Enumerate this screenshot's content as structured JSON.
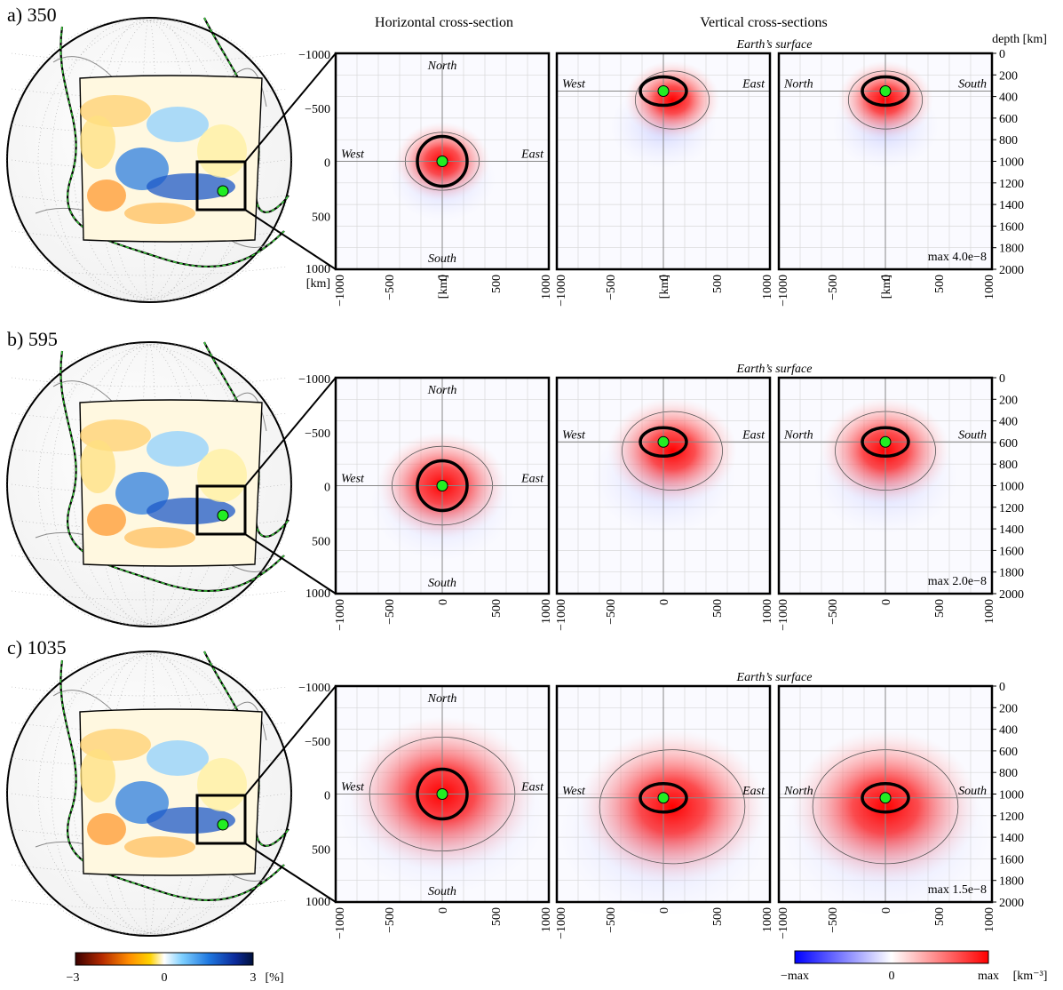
{
  "headers": {
    "horizontal": "Horizontal cross-section",
    "vertical": "Vertical cross-sections",
    "depth": "depth [km]"
  },
  "rows": [
    {
      "label": "a)  350",
      "max_text": "max  4.0e−8",
      "depth_km": 350,
      "show_km_units": true
    },
    {
      "label": "b)  595",
      "max_text": "max  2.0e−8",
      "depth_km": 595,
      "show_km_units": false
    },
    {
      "label": "c)  1035",
      "max_text": "max  1.5e−8",
      "depth_km": 1035,
      "show_km_units": false
    }
  ],
  "panel_labels": {
    "north": "North",
    "south": "South",
    "west": "West",
    "east": "East",
    "surface": "Earth’s surface"
  },
  "axis": {
    "h_ticks": [
      "−1000",
      "−500",
      "0",
      "500",
      "1000"
    ],
    "v_ticks_left": [
      "−1000",
      "−500",
      "0",
      "500",
      "1000"
    ],
    "depth_ticks": [
      "0",
      "200",
      "400",
      "600",
      "800",
      "1000",
      "1200",
      "1400",
      "1600",
      "1800",
      "2000"
    ],
    "unit": "[km]"
  },
  "colorbar_left": {
    "ticks": [
      "−3",
      "0",
      "3"
    ],
    "unit": "[%]",
    "colors": [
      "#3a0000",
      "#b52a00",
      "#ff8c00",
      "#ffd200",
      "#ffffff",
      "#7fd0ff",
      "#1f78e0",
      "#0b2a9a",
      "#00103a"
    ]
  },
  "colorbar_right": {
    "ticks": [
      "−max",
      "0",
      "max"
    ],
    "unit": "[km⁻³]",
    "colors": [
      "#0000ff",
      "#ffffff",
      "#ff0000"
    ]
  }
}
